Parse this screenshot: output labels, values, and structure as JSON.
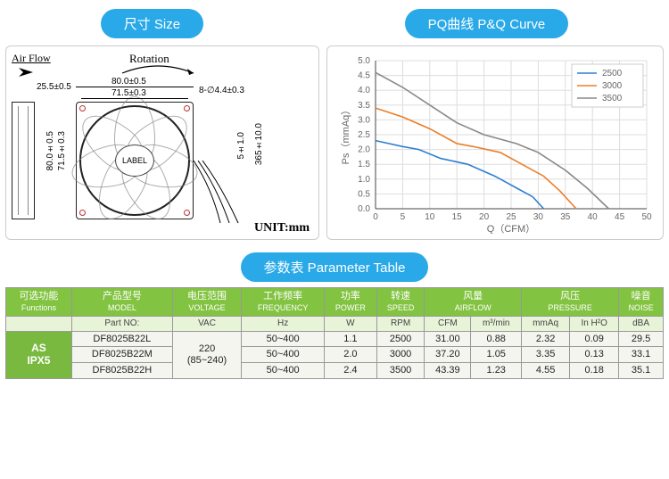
{
  "pills": {
    "size": "尺寸 Size",
    "pq": "PQ曲线 P&Q Curve",
    "param": "参数表 Parameter Table"
  },
  "drawing": {
    "airflow": "Air Flow",
    "rotation": "Rotation",
    "label": "LABEL",
    "unit": "UNIT:mm",
    "dims": {
      "thickness": "25.5±0.5",
      "outer_w": "80.0±0.5",
      "hole_pitch": "71.5±0.3",
      "hole_dia": "8-∅4.4±0.3",
      "outer_h": "80.0±0.5",
      "hole_pitch_v": "71.5±0.3",
      "wire_a": "5±1.0",
      "wire_b": "365±10.0"
    }
  },
  "chart": {
    "x_label": "Q（CFM）",
    "y_label": "Ps（mmAq）",
    "xlim": [
      0,
      50
    ],
    "xtick_step": 5,
    "ylim": [
      0,
      5
    ],
    "ytick_step": 0.5,
    "grid_color": "#dddddd",
    "axis_color": "#444444",
    "font_size": 10,
    "series": [
      {
        "name": "2500",
        "color": "#2e7fd1",
        "points": [
          [
            0,
            2.3
          ],
          [
            5,
            2.1
          ],
          [
            8,
            2.0
          ],
          [
            12,
            1.7
          ],
          [
            17,
            1.5
          ],
          [
            22,
            1.1
          ],
          [
            26,
            0.7
          ],
          [
            29,
            0.4
          ],
          [
            31,
            0
          ]
        ]
      },
      {
        "name": "3000",
        "color": "#e97e2a",
        "points": [
          [
            0,
            3.4
          ],
          [
            5,
            3.1
          ],
          [
            10,
            2.7
          ],
          [
            15,
            2.2
          ],
          [
            18,
            2.1
          ],
          [
            23,
            1.9
          ],
          [
            27,
            1.5
          ],
          [
            31,
            1.1
          ],
          [
            34,
            0.6
          ],
          [
            37,
            0
          ]
        ]
      },
      {
        "name": "3500",
        "color": "#888888",
        "points": [
          [
            0,
            4.6
          ],
          [
            5,
            4.1
          ],
          [
            10,
            3.5
          ],
          [
            15,
            2.9
          ],
          [
            20,
            2.5
          ],
          [
            26,
            2.2
          ],
          [
            30,
            1.9
          ],
          [
            35,
            1.3
          ],
          [
            39,
            0.7
          ],
          [
            43,
            0
          ]
        ]
      }
    ]
  },
  "table": {
    "head1": [
      {
        "cn": "可选功能",
        "en": "Functions"
      },
      {
        "cn": "产品型号",
        "en": "MODEL"
      },
      {
        "cn": "电压范围",
        "en": "VOLTAGE"
      },
      {
        "cn": "工作频率",
        "en": "FREQUENCY"
      },
      {
        "cn": "功率",
        "en": "POWER"
      },
      {
        "cn": "转速",
        "en": "SPEED"
      },
      {
        "cn": "风量",
        "en": "AIRFLOW",
        "span": 2
      },
      {
        "cn": "风压",
        "en": "PRESSURE",
        "span": 2
      },
      {
        "cn": "噪音",
        "en": "NOISE"
      }
    ],
    "head2": [
      "",
      "Part NO:",
      "VAC",
      "Hz",
      "W",
      "RPM",
      "CFM",
      "m³/min",
      "mmAq",
      "In H²O",
      "dBA"
    ],
    "function_tag": {
      "l1": "AS",
      "l2": "IPX5"
    },
    "voltage": {
      "l1": "220",
      "l2": "(85~240)"
    },
    "rows": [
      {
        "model": "DF8025B22L",
        "freq": "50~400",
        "power": "1.1",
        "speed": "2500",
        "cfm": "31.00",
        "m3": "0.88",
        "mmaq": "2.32",
        "inh2o": "0.09",
        "dba": "29.5"
      },
      {
        "model": "DF8025B22M",
        "freq": "50~400",
        "power": "2.0",
        "speed": "3000",
        "cfm": "37.20",
        "m3": "1.05",
        "mmaq": "3.35",
        "inh2o": "0.13",
        "dba": "33.1"
      },
      {
        "model": "DF8025B22H",
        "freq": "50~400",
        "power": "2.4",
        "speed": "3500",
        "cfm": "43.39",
        "m3": "1.23",
        "mmaq": "4.55",
        "inh2o": "0.18",
        "dba": "35.1"
      }
    ]
  }
}
